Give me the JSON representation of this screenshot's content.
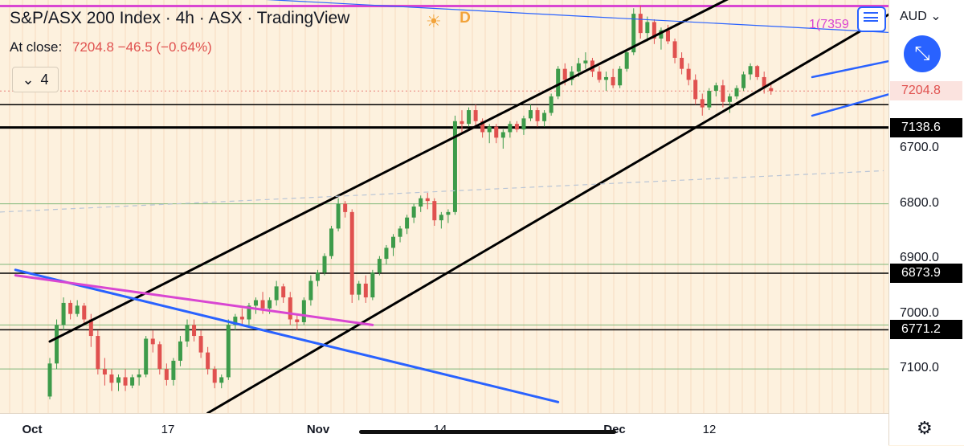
{
  "header": {
    "title": "S&P/ASX 200 Index · 4h · ASX · TradingView",
    "at_close_label": "At close:",
    "at_close_value": "7204.8  −46.5 (−0.64%)",
    "indicators_count": "4",
    "session_badge": "D",
    "alert_label": "1(7359"
  },
  "price_axis": {
    "currency": "AUD",
    "ticks": [
      "7100.0",
      "7000.0",
      "6900.0",
      "6800.0",
      "6700.0"
    ],
    "badges": [
      {
        "label": "7204.8",
        "price": 7204.8,
        "bg": "#fbe3df",
        "color": "#e0514f"
      },
      {
        "label": "7138.6",
        "price": 7138.6,
        "bg": "#000000",
        "color": "#ffffff"
      },
      {
        "label": "6873.9",
        "price": 6873.9,
        "bg": "#000000",
        "color": "#ffffff"
      },
      {
        "label": "6771.2",
        "price": 6771.2,
        "bg": "#000000",
        "color": "#ffffff"
      }
    ]
  },
  "time_axis": {
    "ticks": [
      {
        "label": "Oct",
        "bold": true
      },
      {
        "label": "17",
        "bold": false
      },
      {
        "label": "Nov",
        "bold": true
      },
      {
        "label": "14",
        "bold": false
      },
      {
        "label": "Dec",
        "bold": true
      },
      {
        "label": "12",
        "bold": false
      }
    ]
  },
  "colors": {
    "up": "#3d9b4a",
    "down": "#e0514f",
    "background": "#fdf1de",
    "trendline": "#000000",
    "channel": "#2962ff",
    "magenta": "#d946d2",
    "level_green": "#7fb67a"
  },
  "chart_data": {
    "type": "candlestick",
    "title": "S&P/ASX 200 Index · 4h · ASX",
    "ylim": [
      6620,
      7370
    ],
    "y_ticks": [
      6700,
      6800,
      6900,
      7000,
      7100
    ],
    "ohlc": [
      [
        6650,
        6720,
        6645,
        6710
      ],
      [
        6710,
        6790,
        6700,
        6780
      ],
      [
        6780,
        6830,
        6770,
        6820
      ],
      [
        6820,
        6825,
        6790,
        6800
      ],
      [
        6800,
        6825,
        6795,
        6815
      ],
      [
        6815,
        6820,
        6780,
        6790
      ],
      [
        6790,
        6800,
        6740,
        6760
      ],
      [
        6760,
        6770,
        6690,
        6700
      ],
      [
        6700,
        6720,
        6670,
        6690
      ],
      [
        6690,
        6700,
        6660,
        6675
      ],
      [
        6675,
        6690,
        6660,
        6685
      ],
      [
        6685,
        6700,
        6660,
        6670
      ],
      [
        6670,
        6690,
        6665,
        6685
      ],
      [
        6685,
        6700,
        6670,
        6690
      ],
      [
        6690,
        6760,
        6685,
        6755
      ],
      [
        6755,
        6770,
        6730,
        6745
      ],
      [
        6745,
        6750,
        6690,
        6700
      ],
      [
        6700,
        6710,
        6670,
        6680
      ],
      [
        6680,
        6720,
        6670,
        6715
      ],
      [
        6715,
        6760,
        6705,
        6750
      ],
      [
        6750,
        6790,
        6740,
        6780
      ],
      [
        6780,
        6790,
        6750,
        6760
      ],
      [
        6760,
        6770,
        6720,
        6730
      ],
      [
        6730,
        6740,
        6690,
        6700
      ],
      [
        6700,
        6705,
        6665,
        6675
      ],
      [
        6675,
        6690,
        6665,
        6685
      ],
      [
        6685,
        6790,
        6680,
        6780
      ],
      [
        6780,
        6800,
        6770,
        6795
      ],
      [
        6795,
        6810,
        6780,
        6790
      ],
      [
        6790,
        6820,
        6780,
        6815
      ],
      [
        6815,
        6830,
        6800,
        6825
      ],
      [
        6825,
        6840,
        6800,
        6810
      ],
      [
        6810,
        6830,
        6800,
        6825
      ],
      [
        6825,
        6860,
        6815,
        6850
      ],
      [
        6850,
        6855,
        6820,
        6830
      ],
      [
        6830,
        6840,
        6780,
        6790
      ],
      [
        6790,
        6800,
        6770,
        6785
      ],
      [
        6785,
        6830,
        6780,
        6825
      ],
      [
        6825,
        6870,
        6815,
        6860
      ],
      [
        6860,
        6880,
        6850,
        6875
      ],
      [
        6875,
        6910,
        6870,
        6905
      ],
      [
        6905,
        6960,
        6900,
        6955
      ],
      [
        6955,
        7010,
        6950,
        7000
      ],
      [
        7000,
        7005,
        6975,
        6985
      ],
      [
        6985,
        6990,
        6820,
        6835
      ],
      [
        6835,
        6860,
        6825,
        6855
      ],
      [
        6855,
        6870,
        6820,
        6830
      ],
      [
        6830,
        6880,
        6825,
        6875
      ],
      [
        6875,
        6905,
        6870,
        6900
      ],
      [
        6900,
        6925,
        6890,
        6920
      ],
      [
        6920,
        6945,
        6905,
        6940
      ],
      [
        6940,
        6960,
        6930,
        6955
      ],
      [
        6955,
        6980,
        6945,
        6975
      ],
      [
        6975,
        7000,
        6965,
        6995
      ],
      [
        6995,
        7015,
        6985,
        7010
      ],
      [
        7010,
        7020,
        6990,
        7005
      ],
      [
        7005,
        7010,
        6960,
        6970
      ],
      [
        6970,
        6985,
        6955,
        6980
      ],
      [
        6980,
        6990,
        6965,
        6985
      ],
      [
        6985,
        7160,
        6980,
        7150
      ],
      [
        7150,
        7170,
        7130,
        7145
      ],
      [
        7145,
        7175,
        7140,
        7170
      ],
      [
        7170,
        7180,
        7140,
        7150
      ],
      [
        7150,
        7155,
        7120,
        7130
      ],
      [
        7130,
        7145,
        7110,
        7140
      ],
      [
        7140,
        7145,
        7110,
        7120
      ],
      [
        7120,
        7135,
        7100,
        7130
      ],
      [
        7130,
        7150,
        7120,
        7145
      ],
      [
        7145,
        7150,
        7130,
        7135
      ],
      [
        7135,
        7160,
        7125,
        7155
      ],
      [
        7155,
        7180,
        7150,
        7170
      ],
      [
        7170,
        7175,
        7140,
        7150
      ],
      [
        7150,
        7170,
        7140,
        7165
      ],
      [
        7165,
        7200,
        7160,
        7195
      ],
      [
        7195,
        7250,
        7190,
        7245
      ],
      [
        7245,
        7255,
        7215,
        7225
      ],
      [
        7225,
        7250,
        7215,
        7240
      ],
      [
        7240,
        7265,
        7230,
        7255
      ],
      [
        7255,
        7275,
        7245,
        7260
      ],
      [
        7260,
        7265,
        7230,
        7240
      ],
      [
        7240,
        7250,
        7220,
        7225
      ],
      [
        7225,
        7240,
        7205,
        7230
      ],
      [
        7230,
        7245,
        7210,
        7215
      ],
      [
        7215,
        7250,
        7210,
        7245
      ],
      [
        7245,
        7280,
        7240,
        7275
      ],
      [
        7275,
        7355,
        7270,
        7345
      ],
      [
        7345,
        7360,
        7300,
        7310
      ],
      [
        7310,
        7340,
        7295,
        7330
      ],
      [
        7330,
        7335,
        7290,
        7300
      ],
      [
        7300,
        7320,
        7280,
        7315
      ],
      [
        7315,
        7325,
        7290,
        7295
      ],
      [
        7295,
        7300,
        7255,
        7265
      ],
      [
        7265,
        7275,
        7235,
        7245
      ],
      [
        7245,
        7255,
        7215,
        7225
      ],
      [
        7225,
        7235,
        7180,
        7190
      ],
      [
        7190,
        7200,
        7160,
        7175
      ],
      [
        7175,
        7210,
        7170,
        7205
      ],
      [
        7205,
        7220,
        7195,
        7215
      ],
      [
        7215,
        7225,
        7175,
        7185
      ],
      [
        7185,
        7200,
        7165,
        7195
      ],
      [
        7195,
        7215,
        7190,
        7210
      ],
      [
        7210,
        7240,
        7205,
        7235
      ],
      [
        7235,
        7255,
        7225,
        7250
      ],
      [
        7250,
        7252,
        7225,
        7230
      ],
      [
        7230,
        7240,
        7200,
        7210
      ],
      [
        7210,
        7220,
        7198,
        7204.8
      ]
    ],
    "horizontal_levels": [
      {
        "price": 7359,
        "color": "#d946d2",
        "label": "1(7359"
      },
      {
        "price": 7204.8,
        "color": "#e0514f",
        "label": "7204.8"
      },
      {
        "price": 7180,
        "color": "#000000"
      },
      {
        "price": 7138.6,
        "color": "#000000",
        "label": "7138.6"
      },
      {
        "price": 6873.9,
        "color": "#000000",
        "label": "6873.9"
      },
      {
        "price": 6771.2,
        "color": "#000000",
        "label": "6771.2"
      },
      {
        "price": 7000,
        "color": "#7fb67a"
      },
      {
        "price": 6890,
        "color": "#7fb67a"
      },
      {
        "price": 6780,
        "color": "#7fb67a"
      },
      {
        "price": 6700,
        "color": "#7fb67a"
      }
    ],
    "trendlines": [
      {
        "name": "channel-upper",
        "color": "#000000",
        "from": [
          0,
          6750
        ],
        "to": [
          104,
          7405
        ]
      },
      {
        "name": "channel-lower",
        "color": "#000000",
        "from": [
          23,
          6620
        ],
        "to": [
          123,
          7350
        ]
      },
      {
        "name": "falling-blue-1",
        "color": "#2962ff",
        "from": [
          -5,
          6880
        ],
        "to": [
          74,
          6640
        ]
      },
      {
        "name": "falling-magenta",
        "color": "#d946d2",
        "from": [
          -5,
          6870
        ],
        "to": [
          47,
          6780
        ]
      },
      {
        "name": "top-blue",
        "color": "#2962ff",
        "from": [
          10,
          7385
        ],
        "to": [
          139,
          7300
        ]
      },
      {
        "name": "bull-flag-upper",
        "color": "#2962ff",
        "from": [
          111,
          7230
        ],
        "to": [
          134,
          7290
        ]
      },
      {
        "name": "bull-flag-lower",
        "color": "#2962ff",
        "from": [
          111,
          7160
        ],
        "to": [
          134,
          7240
        ]
      }
    ]
  }
}
